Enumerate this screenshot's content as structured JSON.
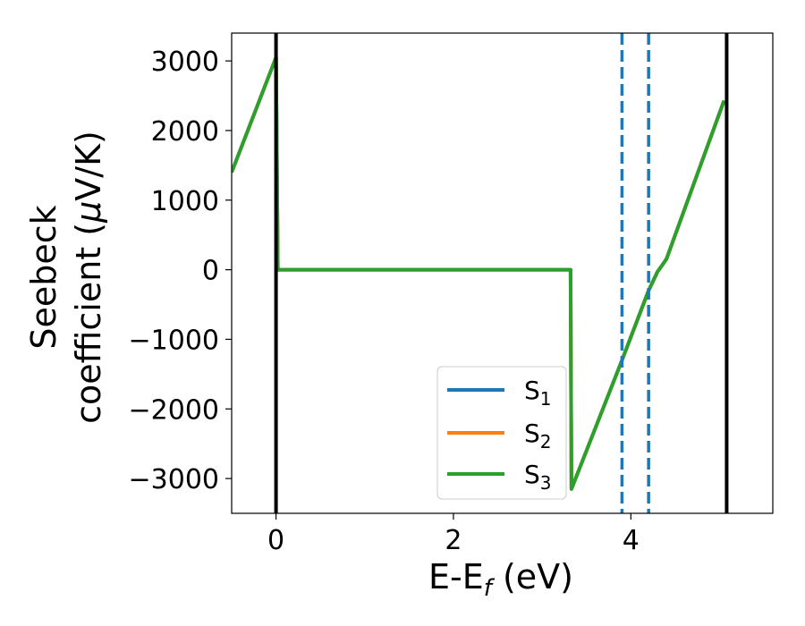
{
  "chart_data": {
    "type": "line",
    "xlabel": "E-E",
    "xlabel_sub": "f",
    "xlabel_unit": " (eV)",
    "ylabel_line1": "Seebeck",
    "ylabel_line2_pre": "coefficient  (",
    "ylabel_mu": "μ",
    "ylabel_line2_post": "V/K)",
    "xlim": [
      -0.5,
      5.6
    ],
    "ylim": [
      -3500,
      3400
    ],
    "xticks": [
      0,
      2,
      4
    ],
    "xtick_labels": [
      "0",
      "2",
      "4"
    ],
    "yticks": [
      3000,
      2000,
      1000,
      0,
      -1000,
      -2000,
      -3000
    ],
    "ytick_labels": [
      "3000",
      "2000",
      "1000",
      "0",
      "−1000",
      "−2000",
      "−3000"
    ],
    "grid": false,
    "legend_position": "lower-right",
    "series": [
      {
        "name": "S",
        "sub": "1",
        "color": "#1f77b4",
        "x": [
          -0.5,
          0.0,
          0.02,
          3.32,
          3.33,
          3.9,
          4.2,
          4.3,
          4.4,
          5.05
        ],
        "y": [
          1400,
          3050,
          0,
          0,
          -3150,
          -1300,
          -300,
          -30,
          150,
          2430
        ]
      },
      {
        "name": "S",
        "sub": "2",
        "color": "#ff7f0e",
        "x": [
          -0.5,
          0.0,
          0.02,
          3.32,
          3.33,
          3.9,
          4.2,
          4.3,
          4.4,
          5.05
        ],
        "y": [
          1400,
          3050,
          0,
          0,
          -3150,
          -1300,
          -300,
          -30,
          150,
          2430
        ]
      },
      {
        "name": "S",
        "sub": "3",
        "color": "#2ca02c",
        "x": [
          -0.5,
          0.0,
          0.02,
          3.32,
          3.33,
          3.9,
          4.2,
          4.3,
          4.4,
          5.05
        ],
        "y": [
          1400,
          3050,
          0,
          0,
          -3150,
          -1300,
          -300,
          -30,
          150,
          2430
        ]
      }
    ],
    "vertical_lines": [
      {
        "x": 0.0,
        "style": "solid",
        "color": "#000000"
      },
      {
        "x": 5.08,
        "style": "solid",
        "color": "#000000"
      },
      {
        "x": 3.9,
        "style": "dashed",
        "color": "#1f77b4"
      },
      {
        "x": 4.2,
        "style": "dashed",
        "color": "#1f77b4"
      }
    ]
  }
}
